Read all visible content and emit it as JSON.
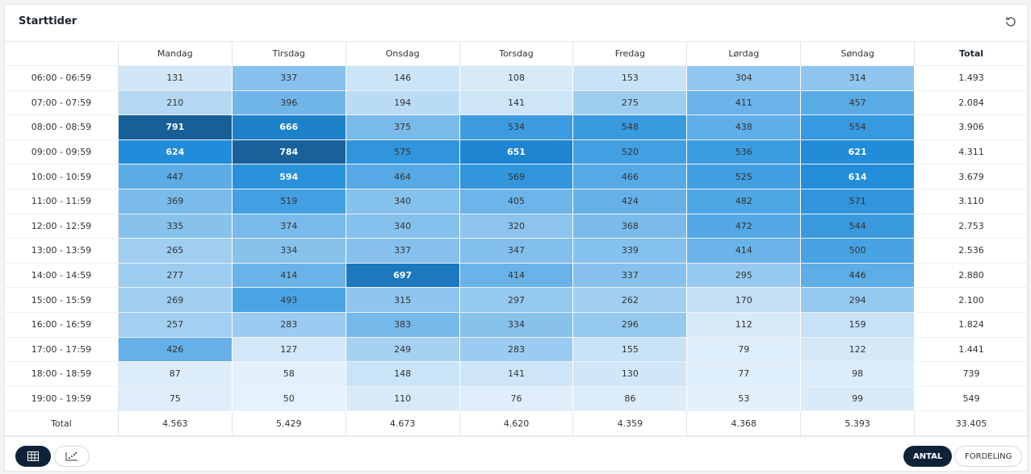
{
  "header": {
    "title": "Starttider"
  },
  "table": {
    "columns": [
      "Mandag",
      "Tirsdag",
      "Onsdag",
      "Torsdag",
      "Fredag",
      "Lørdag",
      "Søndag"
    ],
    "total_column": "Total",
    "rows": [
      {
        "label": "06:00 - 06:59",
        "values": [
          131,
          337,
          146,
          108,
          153,
          304,
          314
        ],
        "total": "1.493"
      },
      {
        "label": "07:00 - 07:59",
        "values": [
          210,
          396,
          194,
          141,
          275,
          411,
          457
        ],
        "total": "2.084"
      },
      {
        "label": "08:00 - 08:59",
        "values": [
          791,
          666,
          375,
          534,
          548,
          438,
          554
        ],
        "total": "3.906"
      },
      {
        "label": "09:00 - 09:59",
        "values": [
          624,
          784,
          575,
          651,
          520,
          536,
          621
        ],
        "total": "4.311"
      },
      {
        "label": "10:00 - 10:59",
        "values": [
          447,
          594,
          464,
          569,
          466,
          525,
          614
        ],
        "total": "3.679"
      },
      {
        "label": "11:00 - 11:59",
        "values": [
          369,
          519,
          340,
          405,
          424,
          482,
          571
        ],
        "total": "3.110"
      },
      {
        "label": "12:00 - 12:59",
        "values": [
          335,
          374,
          340,
          320,
          368,
          472,
          544
        ],
        "total": "2.753"
      },
      {
        "label": "13:00 - 13:59",
        "values": [
          265,
          334,
          337,
          347,
          339,
          414,
          500
        ],
        "total": "2.536"
      },
      {
        "label": "14:00 - 14:59",
        "values": [
          277,
          414,
          697,
          414,
          337,
          295,
          446
        ],
        "total": "2.880"
      },
      {
        "label": "15:00 - 15:59",
        "values": [
          269,
          493,
          315,
          297,
          262,
          170,
          294
        ],
        "total": "2.100"
      },
      {
        "label": "16:00 - 16:59",
        "values": [
          257,
          283,
          383,
          334,
          296,
          112,
          159
        ],
        "total": "1.824"
      },
      {
        "label": "17:00 - 17:59",
        "values": [
          426,
          127,
          249,
          283,
          155,
          79,
          122
        ],
        "total": "1.441"
      },
      {
        "label": "18:00 - 18:59",
        "values": [
          87,
          58,
          148,
          141,
          130,
          77,
          98
        ],
        "total": "739"
      },
      {
        "label": "19:00 - 19:59",
        "values": [
          75,
          50,
          110,
          76,
          86,
          53,
          99
        ],
        "total": "549"
      }
    ],
    "total_row": {
      "label": "Total",
      "values": [
        "4.563",
        "5.429",
        "4.673",
        "4.620",
        "4.359",
        "4.368",
        "5.393"
      ],
      "total": "33.405"
    }
  },
  "footer": {
    "buttons": [
      "ANTAL",
      "FORDELING"
    ]
  }
}
